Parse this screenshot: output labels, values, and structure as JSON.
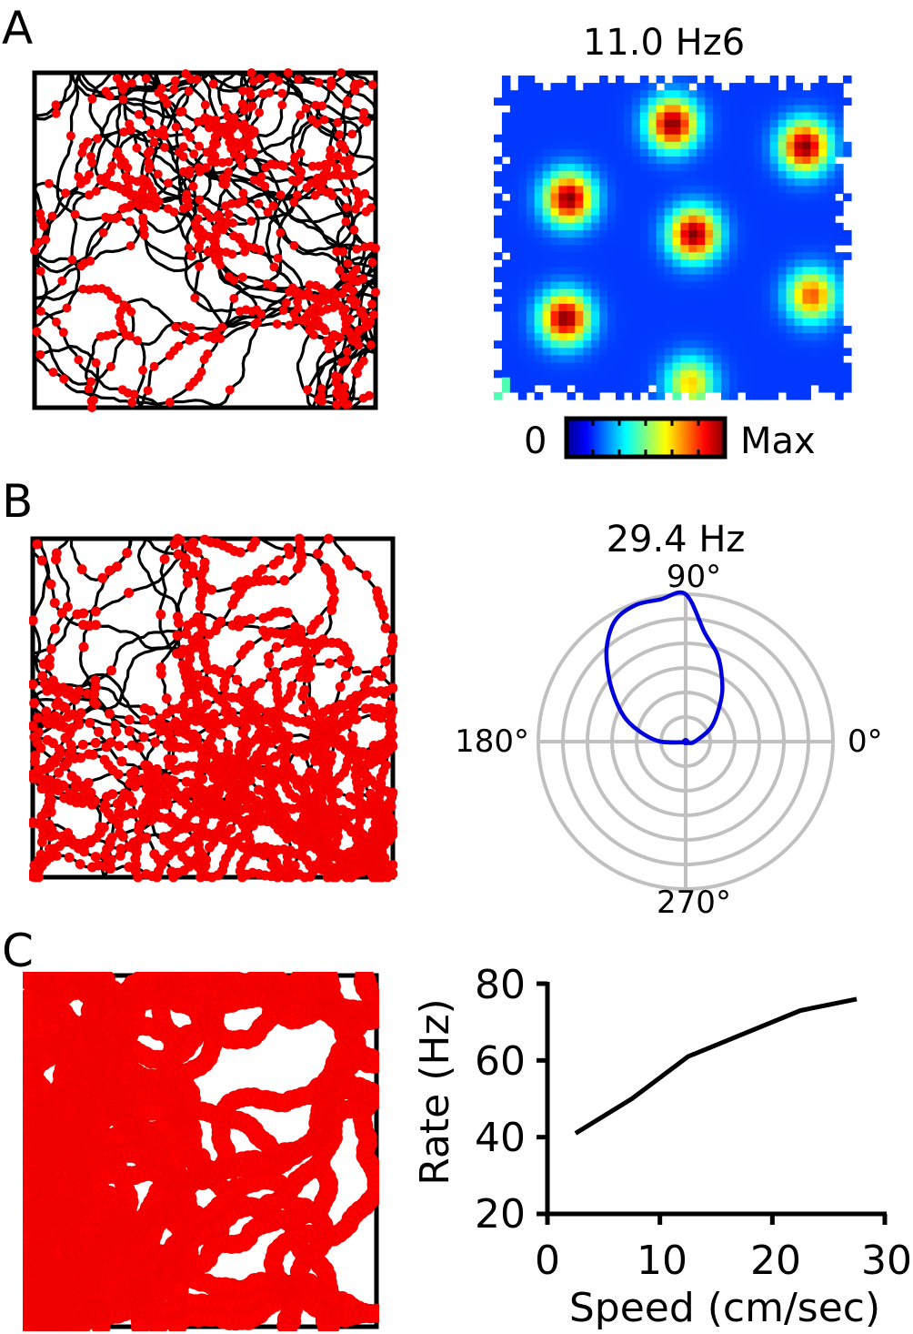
{
  "panels": [
    {
      "letter": "A"
    },
    {
      "letter": "B"
    },
    {
      "letter": "C"
    }
  ],
  "chart_data": [
    {
      "type": "trajectory",
      "panel": "A",
      "description_colors": {
        "path": "#000000",
        "spikes": "#ff0000"
      },
      "spike_fields": [
        [
          0.25,
          0.35
        ],
        [
          0.55,
          0.2
        ],
        [
          0.85,
          0.28
        ],
        [
          0.55,
          0.5
        ],
        [
          0.2,
          0.72
        ],
        [
          0.85,
          0.72
        ],
        [
          0.45,
          0.85
        ]
      ]
    },
    {
      "type": "heatmap",
      "panel": "A",
      "title": "11.0 Hz6",
      "fields": [
        {
          "x": 0.5,
          "y": 0.15,
          "peak": 1.0
        },
        {
          "x": 0.87,
          "y": 0.22,
          "peak": 1.0
        },
        {
          "x": 0.21,
          "y": 0.38,
          "peak": 1.0
        },
        {
          "x": 0.56,
          "y": 0.49,
          "peak": 1.0
        },
        {
          "x": 0.2,
          "y": 0.75,
          "peak": 1.0
        },
        {
          "x": 0.89,
          "y": 0.68,
          "peak": 0.75
        },
        {
          "x": 0.55,
          "y": 0.95,
          "peak": 0.6
        }
      ],
      "colorbar": {
        "min_label": "0",
        "max_label": "Max",
        "colormap": "jet"
      }
    },
    {
      "type": "trajectory",
      "panel": "B",
      "description_colors": {
        "path": "#000000",
        "spikes": "#ff0000"
      }
    },
    {
      "type": "polar",
      "panel": "B",
      "title": "29.4 Hz",
      "angle_labels": [
        "90°",
        "180°",
        "0°",
        "270°"
      ],
      "rings": 6,
      "r_max": 29.4,
      "curve_color": "#0000dd",
      "theta_deg": [
        90,
        100,
        110,
        120,
        130,
        140,
        150,
        160,
        170,
        180,
        200,
        220,
        240,
        260,
        280,
        300,
        330,
        0,
        30,
        50,
        60,
        70,
        80,
        90
      ],
      "r": [
        29.4,
        28.8,
        29.0,
        28.0,
        24.5,
        20.0,
        16.0,
        12.5,
        8.5,
        5.0,
        0.5,
        0.3,
        0.2,
        0.2,
        0.2,
        0.3,
        0.5,
        1.8,
        6.0,
        11.0,
        14.5,
        18.5,
        22.0,
        29.4
      ]
    },
    {
      "type": "trajectory",
      "panel": "C",
      "description_colors": {
        "path": "#000000",
        "spikes": "#ff0000"
      }
    },
    {
      "type": "line",
      "panel": "C",
      "xlabel": "Speed (cm/sec)",
      "ylabel": "Rate (Hz)",
      "xlim": [
        0,
        30
      ],
      "ylim": [
        20,
        80
      ],
      "xticks": [
        "0",
        "10",
        "20",
        "30"
      ],
      "yticks": [
        "20",
        "40",
        "60",
        "80"
      ],
      "x": [
        2.5,
        7.5,
        12.5,
        17.5,
        22.5,
        27.5
      ],
      "y": [
        41,
        50,
        61,
        67,
        73,
        76
      ],
      "color": "#000000"
    }
  ]
}
